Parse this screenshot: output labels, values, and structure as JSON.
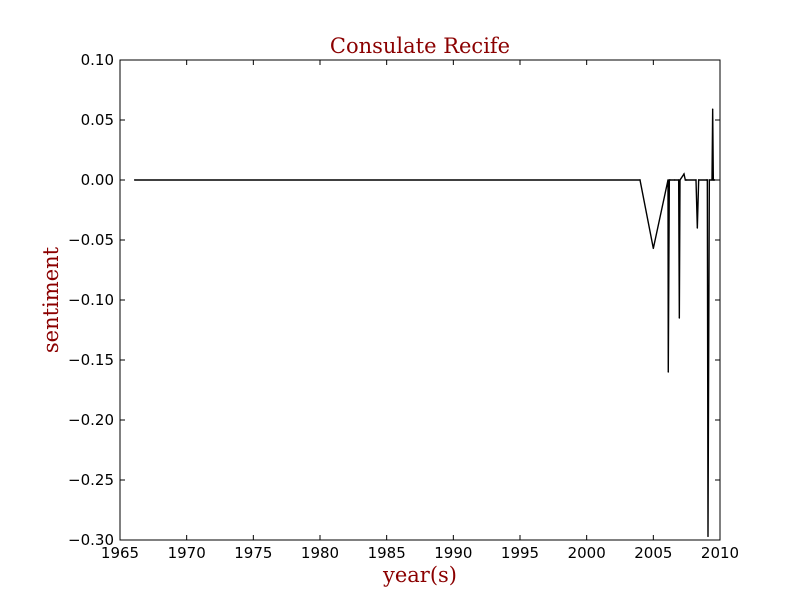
{
  "chart_data": {
    "type": "line",
    "title": "Consulate Recife",
    "xlabel": "year(s)",
    "ylabel": "sentiment",
    "xlim": [
      1965,
      2010
    ],
    "ylim": [
      -0.3,
      0.1
    ],
    "x_ticks": [
      1965,
      1970,
      1975,
      1980,
      1985,
      1990,
      1995,
      2000,
      2005,
      2010
    ],
    "x_tick_labels": [
      "1965",
      "1970",
      "1975",
      "1980",
      "1985",
      "1990",
      "1995",
      "2000",
      "2005",
      "2010"
    ],
    "y_ticks": [
      0.1,
      0.05,
      0.0,
      -0.05,
      -0.1,
      -0.15,
      -0.2,
      -0.25,
      -0.3
    ],
    "y_tick_labels": [
      "0.10",
      "0.05",
      "0.00",
      "−0.05",
      "−0.10",
      "−0.15",
      "−0.20",
      "−0.25",
      "−0.30"
    ],
    "grid": false,
    "colors": {
      "line": "#000000",
      "title": "#8b0000",
      "axis_label": "#8b0000"
    },
    "series": [
      {
        "x": [
          1966.1,
          2004.0,
          2005.0,
          2006.1,
          2006.12,
          2006.2,
          2006.25,
          2006.6,
          2006.9,
          2006.95,
          2007.0,
          2007.3,
          2007.4,
          2007.5,
          2008.2,
          2008.3,
          2008.4,
          2009.0,
          2009.05,
          2009.1,
          2009.2,
          2009.4,
          2009.45,
          2009.5,
          2009.55,
          2009.6
        ],
        "y": [
          0.0,
          0.0,
          -0.057,
          0.0,
          -0.16,
          0.0,
          0.0,
          0.0,
          0.0,
          -0.115,
          0.0,
          0.005,
          0.0,
          0.0,
          0.0,
          -0.04,
          0.0,
          0.0,
          0.0,
          -0.297,
          0.0,
          0.0,
          0.059,
          0.0,
          0.0,
          0.0
        ]
      }
    ]
  }
}
